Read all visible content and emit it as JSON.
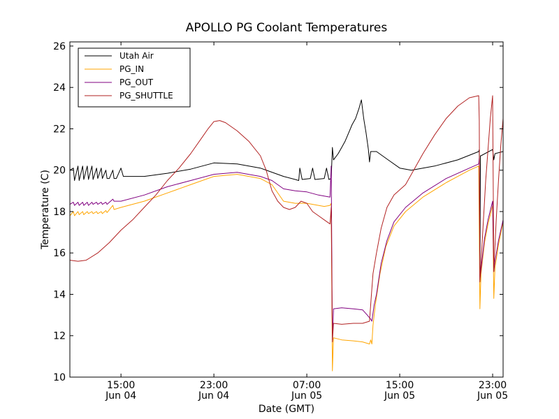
{
  "chart_data": {
    "type": "line",
    "title": "APOLLO PG Coolant Temperatures",
    "xlabel": "Date (GMT)",
    "ylabel": "Temperature (C)",
    "x_unit": "hours since Jun 04 00:00 GMT",
    "xlim": [
      10.6,
      47.9
    ],
    "ylim": [
      10,
      26.2
    ],
    "yticks": [
      10,
      12,
      14,
      16,
      18,
      20,
      22,
      24,
      26
    ],
    "xticks": [
      {
        "x": 15,
        "line1": "15:00",
        "line2": "Jun 04"
      },
      {
        "x": 23,
        "line1": "23:00",
        "line2": "Jun 04"
      },
      {
        "x": 31,
        "line1": "07:00",
        "line2": "Jun 05"
      },
      {
        "x": 39,
        "line1": "15:00",
        "line2": "Jun 05"
      },
      {
        "x": 47,
        "line1": "23:00",
        "line2": "Jun 05"
      }
    ],
    "legend_position": "top-left",
    "series": [
      {
        "name": "Utah Air",
        "color": "#000000",
        "points": [
          [
            10.6,
            20.0
          ],
          [
            10.9,
            20.1
          ],
          [
            11.0,
            19.5
          ],
          [
            11.3,
            20.2
          ],
          [
            11.4,
            19.5
          ],
          [
            11.7,
            20.2
          ],
          [
            11.8,
            19.55
          ],
          [
            12.1,
            20.2
          ],
          [
            12.2,
            19.55
          ],
          [
            12.5,
            20.2
          ],
          [
            12.6,
            19.55
          ],
          [
            12.9,
            20.1
          ],
          [
            13.0,
            19.6
          ],
          [
            13.3,
            20.1
          ],
          [
            13.4,
            19.6
          ],
          [
            13.7,
            20.0
          ],
          [
            13.8,
            19.6
          ],
          [
            14.0,
            19.6
          ],
          [
            14.3,
            20.0
          ],
          [
            14.4,
            19.6
          ],
          [
            14.6,
            19.6
          ],
          [
            15.0,
            20.1
          ],
          [
            15.2,
            19.7
          ],
          [
            17.0,
            19.7
          ],
          [
            19.0,
            19.85
          ],
          [
            21.0,
            20.05
          ],
          [
            23.0,
            20.35
          ],
          [
            25.0,
            20.3
          ],
          [
            27.0,
            20.1
          ],
          [
            29.0,
            19.7
          ],
          [
            30.0,
            19.55
          ],
          [
            30.3,
            19.5
          ],
          [
            30.4,
            20.1
          ],
          [
            30.6,
            19.55
          ],
          [
            31.3,
            19.6
          ],
          [
            31.5,
            20.1
          ],
          [
            31.7,
            19.55
          ],
          [
            32.5,
            19.6
          ],
          [
            32.7,
            20.1
          ],
          [
            32.9,
            19.55
          ],
          [
            33.1,
            19.6
          ],
          [
            33.2,
            21.1
          ],
          [
            33.3,
            20.5
          ],
          [
            33.7,
            20.8
          ],
          [
            34.0,
            21.1
          ],
          [
            34.3,
            21.4
          ],
          [
            34.6,
            21.8
          ],
          [
            34.9,
            22.2
          ],
          [
            35.2,
            22.5
          ],
          [
            35.5,
            23.0
          ],
          [
            35.7,
            23.4
          ],
          [
            35.9,
            22.5
          ],
          [
            36.1,
            21.8
          ],
          [
            36.3,
            21.0
          ],
          [
            36.4,
            20.4
          ],
          [
            36.5,
            20.9
          ],
          [
            37.0,
            20.9
          ],
          [
            38.0,
            20.5
          ],
          [
            39.0,
            20.1
          ],
          [
            40.0,
            20.0
          ],
          [
            42.0,
            20.2
          ],
          [
            44.0,
            20.5
          ],
          [
            45.8,
            20.9
          ],
          [
            45.85,
            21.0
          ],
          [
            45.9,
            14.9
          ],
          [
            45.95,
            20.7
          ],
          [
            46.0,
            20.7
          ],
          [
            47.0,
            21.0
          ],
          [
            47.1,
            20.5
          ],
          [
            47.2,
            20.8
          ],
          [
            47.9,
            20.9
          ]
        ]
      },
      {
        "name": "PG_IN",
        "color": "#ffa500",
        "points": [
          [
            10.6,
            17.8
          ],
          [
            10.9,
            18.0
          ],
          [
            11.0,
            17.8
          ],
          [
            11.3,
            18.0
          ],
          [
            11.4,
            17.85
          ],
          [
            11.7,
            18.0
          ],
          [
            11.8,
            17.85
          ],
          [
            12.1,
            18.0
          ],
          [
            12.2,
            17.9
          ],
          [
            12.5,
            18.0
          ],
          [
            12.6,
            17.9
          ],
          [
            12.9,
            18.0
          ],
          [
            13.0,
            17.9
          ],
          [
            13.3,
            18.0
          ],
          [
            13.4,
            17.9
          ],
          [
            13.7,
            18.05
          ],
          [
            13.8,
            17.95
          ],
          [
            14.3,
            18.3
          ],
          [
            14.4,
            18.1
          ],
          [
            15.0,
            18.2
          ],
          [
            17.0,
            18.5
          ],
          [
            19.0,
            18.9
          ],
          [
            21.0,
            19.3
          ],
          [
            23.0,
            19.7
          ],
          [
            25.0,
            19.8
          ],
          [
            27.0,
            19.6
          ],
          [
            28.0,
            19.3
          ],
          [
            29.0,
            18.5
          ],
          [
            30.0,
            18.4
          ],
          [
            31.0,
            18.4
          ],
          [
            31.5,
            18.35
          ],
          [
            32.0,
            18.3
          ],
          [
            32.5,
            18.25
          ],
          [
            33.0,
            18.3
          ],
          [
            33.1,
            18.4
          ],
          [
            33.2,
            10.3
          ],
          [
            33.3,
            11.9
          ],
          [
            34.0,
            11.8
          ],
          [
            35.0,
            11.75
          ],
          [
            35.8,
            11.7
          ],
          [
            36.4,
            11.6
          ],
          [
            36.5,
            11.8
          ],
          [
            36.6,
            11.6
          ],
          [
            36.7,
            12.5
          ],
          [
            36.9,
            13.5
          ],
          [
            37.3,
            15.0
          ],
          [
            37.8,
            16.3
          ],
          [
            38.5,
            17.3
          ],
          [
            39.5,
            18.0
          ],
          [
            41.0,
            18.7
          ],
          [
            43.0,
            19.4
          ],
          [
            45.0,
            20.0
          ],
          [
            45.8,
            20.2
          ],
          [
            45.9,
            13.3
          ],
          [
            46.0,
            15.0
          ],
          [
            46.3,
            16.5
          ],
          [
            46.6,
            17.4
          ],
          [
            47.0,
            18.3
          ],
          [
            47.1,
            13.8
          ],
          [
            47.2,
            15.3
          ],
          [
            47.5,
            16.4
          ],
          [
            47.9,
            17.5
          ]
        ]
      },
      {
        "name": "PG_OUT",
        "color": "#800080",
        "points": [
          [
            10.6,
            18.35
          ],
          [
            10.9,
            18.45
          ],
          [
            11.0,
            18.3
          ],
          [
            11.3,
            18.45
          ],
          [
            11.4,
            18.3
          ],
          [
            11.7,
            18.45
          ],
          [
            11.8,
            18.3
          ],
          [
            12.1,
            18.45
          ],
          [
            12.2,
            18.3
          ],
          [
            12.5,
            18.45
          ],
          [
            12.6,
            18.35
          ],
          [
            12.9,
            18.45
          ],
          [
            13.0,
            18.35
          ],
          [
            13.3,
            18.45
          ],
          [
            13.4,
            18.35
          ],
          [
            13.7,
            18.45
          ],
          [
            13.8,
            18.35
          ],
          [
            14.3,
            18.6
          ],
          [
            14.4,
            18.5
          ],
          [
            15.0,
            18.5
          ],
          [
            17.0,
            18.8
          ],
          [
            19.0,
            19.2
          ],
          [
            21.0,
            19.5
          ],
          [
            23.0,
            19.8
          ],
          [
            25.0,
            19.9
          ],
          [
            27.0,
            19.7
          ],
          [
            28.0,
            19.5
          ],
          [
            29.0,
            19.1
          ],
          [
            30.0,
            19.0
          ],
          [
            31.0,
            18.95
          ],
          [
            32.0,
            18.8
          ],
          [
            32.5,
            18.75
          ],
          [
            33.0,
            18.7
          ],
          [
            33.1,
            20.2
          ],
          [
            33.2,
            11.8
          ],
          [
            33.3,
            13.3
          ],
          [
            34.0,
            13.35
          ],
          [
            35.0,
            13.3
          ],
          [
            35.8,
            13.25
          ],
          [
            36.2,
            13.0
          ],
          [
            36.5,
            12.8
          ],
          [
            36.6,
            12.7
          ],
          [
            36.8,
            13.5
          ],
          [
            37.0,
            14.0
          ],
          [
            37.4,
            15.5
          ],
          [
            37.9,
            16.6
          ],
          [
            38.5,
            17.5
          ],
          [
            39.5,
            18.2
          ],
          [
            41.0,
            18.9
          ],
          [
            43.0,
            19.6
          ],
          [
            45.0,
            20.1
          ],
          [
            45.8,
            20.3
          ],
          [
            45.85,
            20.6
          ],
          [
            45.9,
            14.7
          ],
          [
            46.0,
            15.2
          ],
          [
            46.3,
            16.7
          ],
          [
            46.6,
            17.6
          ],
          [
            47.0,
            18.5
          ],
          [
            47.1,
            15.1
          ],
          [
            47.2,
            15.6
          ],
          [
            47.5,
            16.6
          ],
          [
            47.9,
            17.6
          ]
        ]
      },
      {
        "name": "PG_SHUTTLE",
        "color": "#b22222",
        "points": [
          [
            10.6,
            15.65
          ],
          [
            11.3,
            15.6
          ],
          [
            12.0,
            15.65
          ],
          [
            13.0,
            16.0
          ],
          [
            14.0,
            16.5
          ],
          [
            15.0,
            17.1
          ],
          [
            16.0,
            17.6
          ],
          [
            17.0,
            18.2
          ],
          [
            18.0,
            18.8
          ],
          [
            19.0,
            19.5
          ],
          [
            20.0,
            20.1
          ],
          [
            21.0,
            20.8
          ],
          [
            22.0,
            21.6
          ],
          [
            22.5,
            22.0
          ],
          [
            23.0,
            22.35
          ],
          [
            23.5,
            22.4
          ],
          [
            24.0,
            22.3
          ],
          [
            25.0,
            21.9
          ],
          [
            26.0,
            21.4
          ],
          [
            27.0,
            20.7
          ],
          [
            27.5,
            20.0
          ],
          [
            28.0,
            19.0
          ],
          [
            28.5,
            18.5
          ],
          [
            29.0,
            18.2
          ],
          [
            29.5,
            18.1
          ],
          [
            30.0,
            18.2
          ],
          [
            30.5,
            18.5
          ],
          [
            31.0,
            18.4
          ],
          [
            31.5,
            18.0
          ],
          [
            32.0,
            17.8
          ],
          [
            32.5,
            17.6
          ],
          [
            33.0,
            17.4
          ],
          [
            33.1,
            18.2
          ],
          [
            33.2,
            11.7
          ],
          [
            33.3,
            12.6
          ],
          [
            34.0,
            12.55
          ],
          [
            35.0,
            12.6
          ],
          [
            35.8,
            12.6
          ],
          [
            36.4,
            12.7
          ],
          [
            36.5,
            13.5
          ],
          [
            36.7,
            15.0
          ],
          [
            37.0,
            16.0
          ],
          [
            37.4,
            17.2
          ],
          [
            37.9,
            18.2
          ],
          [
            38.5,
            18.8
          ],
          [
            39.5,
            19.3
          ],
          [
            40.0,
            19.8
          ],
          [
            41.0,
            20.8
          ],
          [
            42.0,
            21.7
          ],
          [
            43.0,
            22.5
          ],
          [
            44.0,
            23.1
          ],
          [
            45.0,
            23.5
          ],
          [
            45.8,
            23.6
          ],
          [
            45.85,
            22.4
          ],
          [
            45.9,
            14.6
          ],
          [
            46.0,
            15.5
          ],
          [
            46.2,
            17.5
          ],
          [
            46.4,
            19.5
          ],
          [
            46.6,
            21.0
          ],
          [
            46.8,
            22.5
          ],
          [
            47.0,
            23.6
          ],
          [
            47.1,
            15.1
          ],
          [
            47.3,
            17.5
          ],
          [
            47.5,
            19.5
          ],
          [
            47.7,
            21.2
          ],
          [
            47.9,
            22.5
          ]
        ]
      }
    ]
  }
}
